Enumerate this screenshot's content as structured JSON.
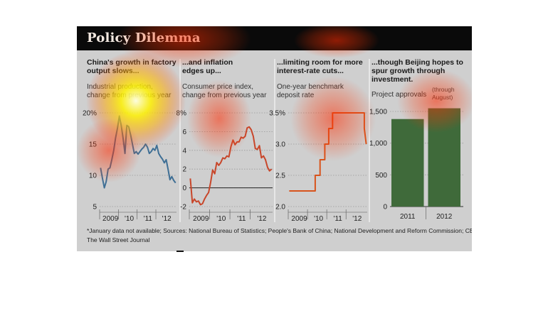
{
  "title": "Policy Dilemma",
  "panels": [
    {
      "title_lines": [
        "China's growth in factory",
        "output slows..."
      ],
      "subtitle_lines": [
        "Industrial production,",
        "change from previous year"
      ]
    },
    {
      "title_lines": [
        "...and inflation",
        "edges up..."
      ],
      "subtitle_lines": [
        "Consumer price index,",
        "change from previous year"
      ]
    },
    {
      "title_lines": [
        "...limiting room for more",
        "interest-rate cuts..."
      ],
      "subtitle_lines": [
        "One-year benchmark",
        "deposit rate"
      ]
    },
    {
      "title_lines": [
        "...though Beijing hopes to",
        "spur growth through",
        "investment."
      ],
      "subtitle_lines": [
        "Project approvals"
      ],
      "note_lines": [
        "(through",
        "August)"
      ]
    }
  ],
  "chart_data": [
    {
      "type": "line",
      "title": "China's growth in factory output slows...",
      "ylabel": "Industrial production, change from previous year",
      "ylim": [
        5,
        20
      ],
      "yticks": [
        "5",
        "10",
        "15",
        "20%"
      ],
      "xlim": [
        2008.5,
        2012.6
      ],
      "xticks": [
        "2009",
        "'10",
        "'11",
        "'12"
      ],
      "xtick_values": [
        2009,
        2010,
        2011,
        2012
      ],
      "color": "#3f6f95",
      "x": [
        2008.55,
        2008.65,
        2008.75,
        2008.85,
        2008.95,
        2009.05,
        2009.15,
        2009.25,
        2009.35,
        2009.45,
        2009.55,
        2009.65,
        2009.75,
        2009.85,
        2009.95,
        2010.05,
        2010.15,
        2010.25,
        2010.35,
        2010.45,
        2010.55,
        2010.65,
        2010.75,
        2010.85,
        2010.95,
        2011.05,
        2011.15,
        2011.25,
        2011.35,
        2011.45,
        2011.55,
        2011.65,
        2011.75,
        2011.85,
        2011.95,
        2012.05,
        2012.15,
        2012.25,
        2012.35,
        2012.45,
        2012.55
      ],
      "values": [
        11.2,
        9.5,
        8.0,
        9.0,
        11.0,
        11.2,
        12.5,
        14.0,
        16.0,
        17.5,
        19.5,
        18.0,
        16.0,
        13.5,
        18.0,
        17.8,
        16.5,
        15.0,
        13.5,
        13.8,
        13.4,
        13.8,
        14.2,
        14.5,
        15.0,
        14.5,
        13.5,
        13.8,
        14.3,
        14.0,
        14.8,
        13.5,
        13.0,
        12.6,
        12.0,
        12.5,
        11.0,
        9.3,
        9.8,
        9.2,
        8.8
      ]
    },
    {
      "type": "line",
      "title": "...and inflation edges up...",
      "ylabel": "Consumer price index, change from previous year",
      "ylim": [
        -2,
        8
      ],
      "yticks": [
        "-2",
        "0",
        "2",
        "4",
        "6",
        "8%"
      ],
      "xlim": [
        2008.5,
        2012.6
      ],
      "xticks": [
        "2009",
        "'10",
        "'11",
        "'12"
      ],
      "xtick_values": [
        2009,
        2010,
        2011,
        2012
      ],
      "color": "#c8462a",
      "x": [
        2008.55,
        2008.65,
        2008.75,
        2008.85,
        2008.95,
        2009.05,
        2009.15,
        2009.25,
        2009.35,
        2009.45,
        2009.55,
        2009.65,
        2009.75,
        2009.85,
        2009.95,
        2010.05,
        2010.15,
        2010.25,
        2010.35,
        2010.45,
        2010.55,
        2010.65,
        2010.75,
        2010.85,
        2010.95,
        2011.05,
        2011.15,
        2011.25,
        2011.35,
        2011.45,
        2011.55,
        2011.65,
        2011.75,
        2011.85,
        2011.95,
        2012.05,
        2012.15,
        2012.25,
        2012.35,
        2012.45,
        2012.55
      ],
      "values": [
        1.0,
        -1.6,
        -1.2,
        -1.5,
        -1.4,
        -1.8,
        -1.7,
        -1.2,
        -0.8,
        -0.5,
        0.6,
        1.9,
        1.5,
        2.7,
        2.4,
        2.7,
        3.2,
        3.1,
        3.4,
        3.3,
        4.4,
        5.1,
        4.6,
        4.9,
        4.9,
        5.4,
        5.3,
        5.5,
        6.4,
        6.5,
        6.2,
        5.5,
        4.2,
        4.1,
        4.5,
        3.2,
        3.4,
        3.0,
        2.2,
        1.8,
        2.0
      ]
    },
    {
      "type": "line",
      "title": "...limiting room for more interest-rate cuts...",
      "ylabel": "One-year benchmark deposit rate",
      "ylim": [
        2.0,
        3.5
      ],
      "yticks": [
        "2.0",
        "2.5",
        "3.0",
        "3.5%"
      ],
      "xlim": [
        2008.5,
        2012.6
      ],
      "xticks": [
        "2009",
        "'10",
        "'11",
        "'12"
      ],
      "xtick_values": [
        2009,
        2010,
        2011,
        2012
      ],
      "color": "#d8531c",
      "x": [
        2008.55,
        2009.9,
        2009.9,
        2010.15,
        2010.15,
        2010.4,
        2010.4,
        2010.6,
        2010.6,
        2010.8,
        2010.8,
        2011.3,
        2011.3,
        2012.45,
        2012.45,
        2012.55
      ],
      "values": [
        2.25,
        2.25,
        2.5,
        2.5,
        2.75,
        2.75,
        3.0,
        3.0,
        3.25,
        3.25,
        3.5,
        3.5,
        3.5,
        3.5,
        3.25,
        3.0
      ]
    },
    {
      "type": "bar",
      "title": "...though Beijing hopes to spur growth through investment.",
      "ylabel": "Project approvals",
      "categories": [
        "2011",
        "2012"
      ],
      "values": [
        1380,
        1550
      ],
      "ylim": [
        0,
        1500
      ],
      "yticks": [
        "0",
        "500",
        "1,000",
        "1,500"
      ],
      "annotation": "(through August)",
      "color": "#3f6a3a"
    }
  ],
  "footnote": "*January data not available; Sources: National Bureau of Statistics; People's Bank of China; National Development and Reform Commission; CEIC",
  "credit": "The Wall Street Journal"
}
